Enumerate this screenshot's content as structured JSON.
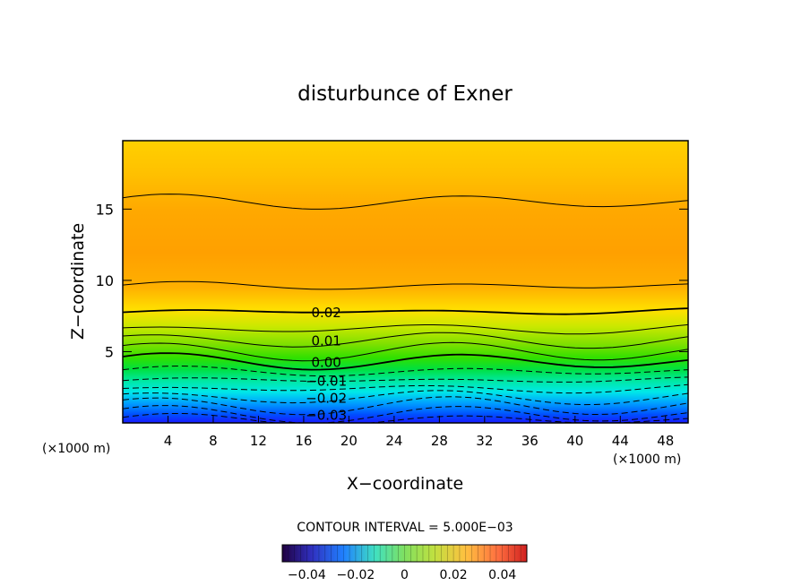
{
  "chart_data": {
    "type": "contour",
    "title": "disturbunce of Exner",
    "xlabel": "X−coordinate",
    "ylabel": "Z−coordinate",
    "x_unit_left": "(×1000 m)",
    "x_unit_right": "(×1000 m)",
    "xlim": [
      0,
      50
    ],
    "ylim": [
      0,
      19.8
    ],
    "x_ticks": [
      4,
      8,
      12,
      16,
      20,
      24,
      28,
      32,
      36,
      40,
      44,
      48
    ],
    "y_ticks": [
      5,
      10,
      15
    ],
    "contour_interval_text": "CONTOUR INTERVAL = 5.000E−03",
    "contour_interval": 0.005,
    "contour_lines": [
      {
        "level": -0.035,
        "z": 0.2,
        "style": "dashed"
      },
      {
        "level": -0.03,
        "z": 0.6,
        "style": "dashed",
        "label": "−0.03"
      },
      {
        "level": -0.025,
        "z": 1.2,
        "style": "dashed"
      },
      {
        "level": -0.02,
        "z": 1.8,
        "style": "dashed",
        "label": "−0.02"
      },
      {
        "level": -0.015,
        "z": 2.4,
        "style": "dashed"
      },
      {
        "level": -0.01,
        "z": 3.0,
        "style": "dashed",
        "label": "−0.01"
      },
      {
        "level": -0.005,
        "z": 3.6,
        "style": "dashed"
      },
      {
        "level": 0.0,
        "z": 4.3,
        "style": "solid-bold",
        "label": "0.00"
      },
      {
        "level": 0.005,
        "z": 5.0,
        "style": "solid"
      },
      {
        "level": 0.01,
        "z": 5.8,
        "style": "solid",
        "label": "0.01"
      },
      {
        "level": 0.015,
        "z": 6.6,
        "style": "solid"
      },
      {
        "level": 0.02,
        "z": 7.8,
        "style": "solid-bold",
        "label": "0.02"
      },
      {
        "level": 0.025,
        "z": 9.6,
        "style": "solid"
      },
      {
        "level": 0.025,
        "z": 15.5,
        "style": "solid"
      }
    ],
    "colorbar": {
      "range": [
        -0.05,
        0.05
      ],
      "tick_labels": [
        "−0.04",
        "−0.02",
        "0",
        "0.02",
        "0.04"
      ],
      "tick_values": [
        -0.04,
        -0.02,
        0,
        0.02,
        0.04
      ]
    }
  }
}
